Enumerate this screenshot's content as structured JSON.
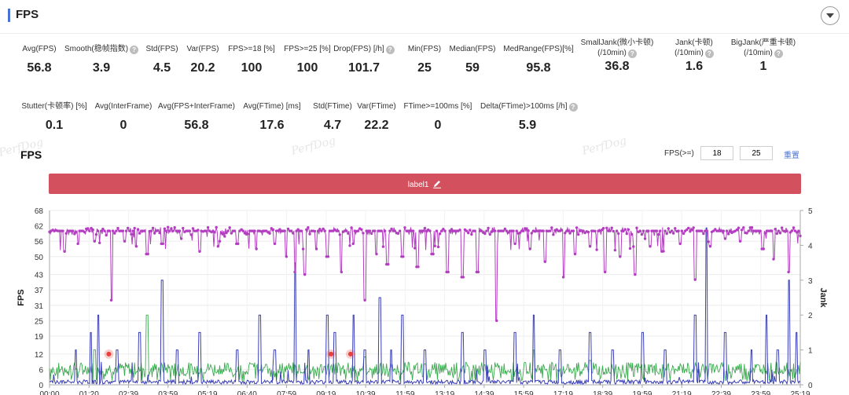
{
  "header": {
    "title": "FPS"
  },
  "stats_row1": [
    {
      "label": "Avg(FPS)",
      "value": "56.8",
      "help": false
    },
    {
      "label": "Smooth(稳帧指数)",
      "value": "3.9",
      "help": true
    },
    {
      "label": "Std(FPS)",
      "value": "4.5",
      "help": false
    },
    {
      "label": "Var(FPS)",
      "value": "20.2",
      "help": false
    },
    {
      "label": "FPS>=18 [%]",
      "value": "100",
      "help": false
    },
    {
      "label": "FPS>=25 [%]",
      "value": "100",
      "help": false
    },
    {
      "label": "Drop(FPS) [/h]",
      "value": "101.7",
      "help": true
    },
    {
      "label": "Min(FPS)",
      "value": "25",
      "help": false
    },
    {
      "label": "Median(FPS)",
      "value": "59",
      "help": false
    },
    {
      "label": "MedRange(FPS)[%]",
      "value": "95.8",
      "help": false
    },
    {
      "label": "SmallJank(微小卡顿)",
      "label2": "(/10min)",
      "value": "36.8",
      "help": true
    },
    {
      "label": "Jank(卡顿)",
      "label2": "(/10min)",
      "value": "1.6",
      "help": true
    },
    {
      "label": "BigJank(严重卡顿)",
      "label2": "(/10min)",
      "value": "1",
      "help": true
    }
  ],
  "stats_row2": [
    {
      "label": "Stutter(卡顿率) [%]",
      "value": "0.1",
      "help": false
    },
    {
      "label": "Avg(InterFrame)",
      "value": "0",
      "help": false
    },
    {
      "label": "Avg(FPS+InterFrame)",
      "value": "56.8",
      "help": false
    },
    {
      "label": "Avg(FTime) [ms]",
      "value": "17.6",
      "help": false
    },
    {
      "label": "Std(FTime)",
      "value": "4.7",
      "help": false
    },
    {
      "label": "Var(FTime)",
      "value": "22.2",
      "help": false
    },
    {
      "label": "FTime>=100ms [%]",
      "value": "0",
      "help": false
    },
    {
      "label": "Delta(FTime)>100ms [/h]",
      "value": "5.9",
      "help": true
    }
  ],
  "watermark": "PerfDog",
  "filter": {
    "label": "FPS(>=)",
    "value1": "18",
    "value2": "25",
    "reset": "重置"
  },
  "label_band": {
    "text": "label1"
  },
  "colors": {
    "fps": "#b23fbf",
    "jank": "#3a3fb5",
    "ftime": "#3aaa4e",
    "label": "#d3515e",
    "accent": "#4a72d6",
    "marker": "#e8403a"
  },
  "chart_data": {
    "type": "line",
    "title": "FPS",
    "xlabel": "",
    "ylabel": "FPS",
    "y2label": "Jank",
    "y_ticks": [
      0,
      6,
      12,
      19,
      25,
      31,
      37,
      43,
      50,
      56,
      62,
      68
    ],
    "y2_ticks": [
      0,
      1,
      2,
      3,
      4,
      5
    ],
    "ylim": [
      0,
      68
    ],
    "y2lim": [
      0,
      5
    ],
    "x_tick_labels": [
      "00:00",
      "01:20",
      "02:39",
      "03:59",
      "05:19",
      "06:40",
      "07:59",
      "09:19",
      "10:39",
      "11:59",
      "13:19",
      "14:39",
      "15:59",
      "17:19",
      "18:39",
      "19:59",
      "21:19",
      "22:39",
      "23:59",
      "25:19"
    ],
    "grid": true,
    "series": [
      {
        "axis": "left",
        "color": "#b23fbf",
        "baseline": 60,
        "dips": [
          [
            0.02,
            52
          ],
          [
            0.038,
            55
          ],
          [
            0.06,
            56
          ],
          [
            0.083,
            33
          ],
          [
            0.1,
            56
          ],
          [
            0.115,
            54
          ],
          [
            0.13,
            51
          ],
          [
            0.15,
            55
          ],
          [
            0.175,
            57
          ],
          [
            0.2,
            52
          ],
          [
            0.225,
            54
          ],
          [
            0.25,
            55
          ],
          [
            0.275,
            53
          ],
          [
            0.3,
            55
          ],
          [
            0.315,
            50
          ],
          [
            0.327,
            44
          ],
          [
            0.34,
            43
          ],
          [
            0.355,
            53
          ],
          [
            0.37,
            50
          ],
          [
            0.388,
            44
          ],
          [
            0.405,
            55
          ],
          [
            0.42,
            33
          ],
          [
            0.435,
            51
          ],
          [
            0.45,
            47
          ],
          [
            0.47,
            50
          ],
          [
            0.49,
            46
          ],
          [
            0.51,
            51
          ],
          [
            0.53,
            44
          ],
          [
            0.55,
            42
          ],
          [
            0.57,
            44
          ],
          [
            0.595,
            25
          ],
          [
            0.62,
            55
          ],
          [
            0.64,
            53
          ],
          [
            0.66,
            48
          ],
          [
            0.685,
            42
          ],
          [
            0.7,
            51
          ],
          [
            0.72,
            54
          ],
          [
            0.74,
            44
          ],
          [
            0.76,
            50
          ],
          [
            0.78,
            43
          ],
          [
            0.8,
            54
          ],
          [
            0.815,
            52
          ],
          [
            0.84,
            55
          ],
          [
            0.86,
            41
          ],
          [
            0.88,
            54
          ],
          [
            0.9,
            57
          ],
          [
            0.92,
            56
          ],
          [
            0.95,
            53
          ],
          [
            0.965,
            49
          ],
          [
            0.985,
            44
          ]
        ]
      },
      {
        "axis": "right",
        "color": "#3a3fb5",
        "spikes": [
          [
            0.035,
            1.0
          ],
          [
            0.055,
            1.5
          ],
          [
            0.065,
            2.0
          ],
          [
            0.09,
            1.0
          ],
          [
            0.12,
            1.5
          ],
          [
            0.15,
            3.0
          ],
          [
            0.17,
            1.0
          ],
          [
            0.2,
            1.5
          ],
          [
            0.25,
            1.0
          ],
          [
            0.28,
            2.0
          ],
          [
            0.3,
            1.0
          ],
          [
            0.327,
            3.5
          ],
          [
            0.345,
            1.0
          ],
          [
            0.37,
            2.0
          ],
          [
            0.38,
            1.5
          ],
          [
            0.405,
            2.0
          ],
          [
            0.42,
            1.0
          ],
          [
            0.44,
            2.5
          ],
          [
            0.455,
            1.0
          ],
          [
            0.47,
            2.0
          ],
          [
            0.5,
            1.0
          ],
          [
            0.55,
            1.5
          ],
          [
            0.58,
            1.0
          ],
          [
            0.62,
            1.5
          ],
          [
            0.645,
            2.0
          ],
          [
            0.68,
            1.0
          ],
          [
            0.72,
            1.5
          ],
          [
            0.75,
            1.0
          ],
          [
            0.79,
            1.5
          ],
          [
            0.82,
            1.0
          ],
          [
            0.86,
            2.0
          ],
          [
            0.875,
            4.5
          ],
          [
            0.9,
            1.5
          ],
          [
            0.935,
            1.0
          ],
          [
            0.955,
            2.0
          ],
          [
            0.97,
            1.0
          ],
          [
            0.985,
            3.0
          ],
          [
            0.995,
            1.5
          ]
        ]
      },
      {
        "axis": "right",
        "color": "#3aaa4e",
        "baseline": 0.3,
        "peaks": [
          [
            0.06,
            1.0
          ],
          [
            0.13,
            2.0
          ],
          [
            0.27,
            0.6
          ],
          [
            0.42,
            0.8
          ],
          [
            0.5,
            0.6
          ],
          [
            0.645,
            1.0
          ],
          [
            0.72,
            0.7
          ],
          [
            0.88,
            0.6
          ]
        ]
      }
    ],
    "markers": [
      {
        "x_frac": 0.079,
        "y": 12
      },
      {
        "x_frac": 0.375,
        "y": 12
      },
      {
        "x_frac": 0.401,
        "y": 12
      }
    ]
  }
}
